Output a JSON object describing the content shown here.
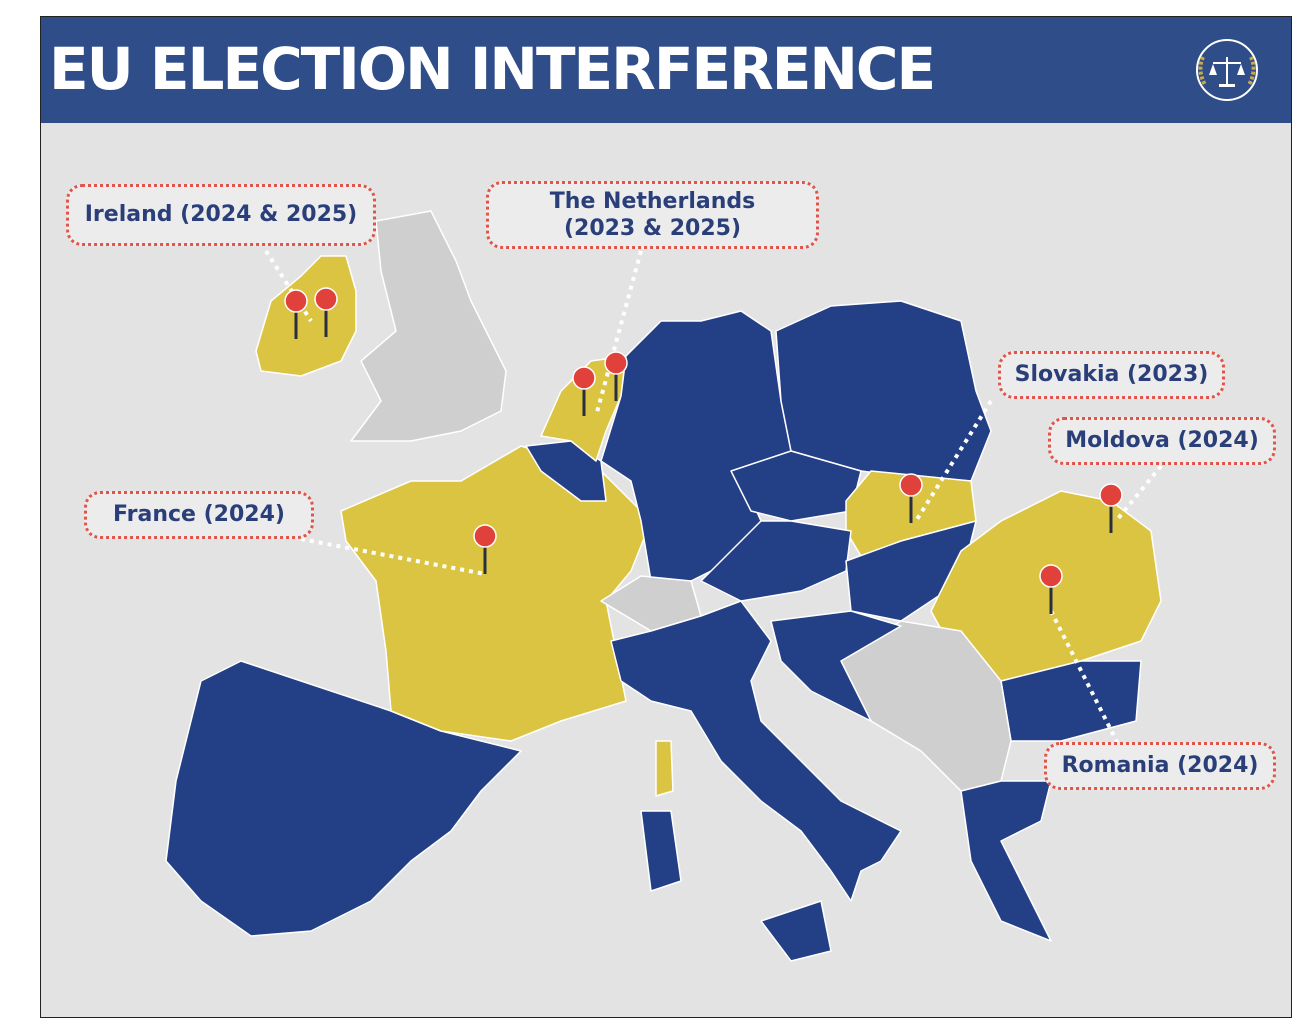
{
  "header": {
    "title": "EU ELECTION INTERFERENCE",
    "logo_icon": "scales-of-justice-icon"
  },
  "colors": {
    "header": "#2f4d88",
    "targeted_country": "#dcc443",
    "other_eu": "#233f86",
    "non_eu": "#cfcfcf",
    "pin": "#e0413a",
    "label_border": "#e0554a"
  },
  "labels": {
    "ireland": "Ireland (2024 & 2025)",
    "netherlands_line1": "The Netherlands",
    "netherlands_line2": "(2023 & 2025)",
    "france": "France (2024)",
    "slovakia": "Slovakia (2023)",
    "moldova": "Moldova (2024)",
    "romania": "Romania (2024)"
  }
}
